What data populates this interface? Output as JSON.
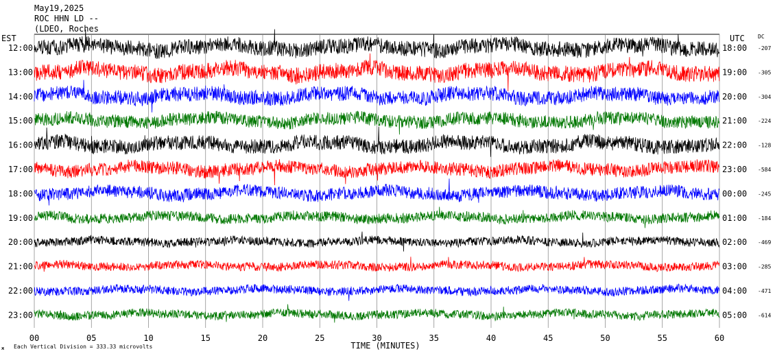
{
  "header": {
    "date": "May19,2025",
    "station": "ROC HHN LD --",
    "network": "(LDEO, Roches"
  },
  "labels": {
    "left_zone": "EST",
    "right_zone": "UTC",
    "dc_header": "DC",
    "xlabel": "TIME (MINUTES)",
    "footer_mark": "ж",
    "footer_scale": "Each Vertical Division =  333.33 microvolts"
  },
  "colors": {
    "black": "#000000",
    "red": "#ff0000",
    "blue": "#0000ff",
    "green": "#007700",
    "grid": "#808080"
  },
  "chart_data": {
    "type": "line",
    "title": "",
    "xlabel": "TIME (MINUTES)",
    "xlim": [
      0,
      60
    ],
    "x_ticks": [
      "00",
      "05",
      "10",
      "15",
      "20",
      "25",
      "30",
      "35",
      "40",
      "45",
      "50",
      "55",
      "60"
    ],
    "rows": [
      {
        "est": "12:00",
        "utc": "18:00",
        "dc": "-207",
        "color": "black",
        "level": 0.75
      },
      {
        "est": "13:00",
        "utc": "19:00",
        "dc": "-305",
        "color": "red",
        "level": 0.8
      },
      {
        "est": "14:00",
        "utc": "20:00",
        "dc": "-304",
        "color": "blue",
        "level": 0.7
      },
      {
        "est": "15:00",
        "utc": "21:00",
        "dc": "-224",
        "color": "green",
        "level": 0.6
      },
      {
        "est": "16:00",
        "utc": "22:00",
        "dc": "-128",
        "color": "black",
        "level": 0.7
      },
      {
        "est": "17:00",
        "utc": "23:00",
        "dc": "-584",
        "color": "red",
        "level": 0.6
      },
      {
        "est": "18:00",
        "utc": "00:00",
        "dc": "-245",
        "color": "blue",
        "level": 0.55
      },
      {
        "est": "19:00",
        "utc": "01:00",
        "dc": "-184",
        "color": "green",
        "level": 0.4
      },
      {
        "est": "20:00",
        "utc": "02:00",
        "dc": "-469",
        "color": "black",
        "level": 0.3
      },
      {
        "est": "21:00",
        "utc": "03:00",
        "dc": "-285",
        "color": "red",
        "level": 0.3
      },
      {
        "est": "22:00",
        "utc": "04:00",
        "dc": "-471",
        "color": "blue",
        "level": 0.3
      },
      {
        "est": "23:00",
        "utc": "05:00",
        "dc": "-614",
        "color": "green",
        "level": 0.3
      }
    ]
  }
}
